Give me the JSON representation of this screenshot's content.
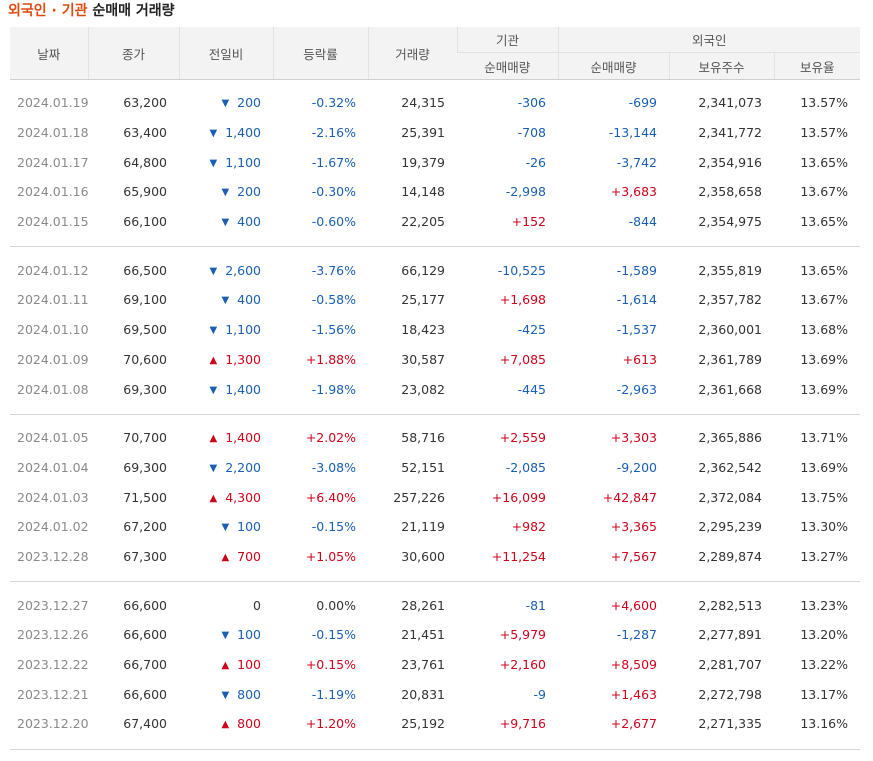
{
  "title": {
    "highlight": "외국인 · 기관",
    "rest": "순매매 거래량"
  },
  "colors": {
    "up": "#d0021b",
    "down": "#1a5fb4",
    "title_accent": "#dd4b11",
    "header_bg": "#f3f3f3"
  },
  "icons": {
    "up": "triangle-up-icon",
    "down": "triangle-down-icon"
  },
  "headers": {
    "date": "날짜",
    "close": "종가",
    "change": "전일비",
    "rate": "등락률",
    "volume": "거래량",
    "institution": "기관",
    "foreign": "외국인",
    "inst_net": "순매매량",
    "foreign_net": "순매매량",
    "holdings": "보유주수",
    "ratio": "보유율"
  },
  "groups": [
    [
      {
        "date": "2024.01.19",
        "close": "63,200",
        "dir": "down",
        "change": "200",
        "rate": "-0.32%",
        "volume": "24,315",
        "inst": "-306",
        "foreign": "-699",
        "holdings": "2,341,073",
        "ratio": "13.57%"
      },
      {
        "date": "2024.01.18",
        "close": "63,400",
        "dir": "down",
        "change": "1,400",
        "rate": "-2.16%",
        "volume": "25,391",
        "inst": "-708",
        "foreign": "-13,144",
        "holdings": "2,341,772",
        "ratio": "13.57%"
      },
      {
        "date": "2024.01.17",
        "close": "64,800",
        "dir": "down",
        "change": "1,100",
        "rate": "-1.67%",
        "volume": "19,379",
        "inst": "-26",
        "foreign": "-3,742",
        "holdings": "2,354,916",
        "ratio": "13.65%"
      },
      {
        "date": "2024.01.16",
        "close": "65,900",
        "dir": "down",
        "change": "200",
        "rate": "-0.30%",
        "volume": "14,148",
        "inst": "-2,998",
        "foreign": "+3,683",
        "holdings": "2,358,658",
        "ratio": "13.67%"
      },
      {
        "date": "2024.01.15",
        "close": "66,100",
        "dir": "down",
        "change": "400",
        "rate": "-0.60%",
        "volume": "22,205",
        "inst": "+152",
        "foreign": "-844",
        "holdings": "2,354,975",
        "ratio": "13.65%"
      }
    ],
    [
      {
        "date": "2024.01.12",
        "close": "66,500",
        "dir": "down",
        "change": "2,600",
        "rate": "-3.76%",
        "volume": "66,129",
        "inst": "-10,525",
        "foreign": "-1,589",
        "holdings": "2,355,819",
        "ratio": "13.65%"
      },
      {
        "date": "2024.01.11",
        "close": "69,100",
        "dir": "down",
        "change": "400",
        "rate": "-0.58%",
        "volume": "25,177",
        "inst": "+1,698",
        "foreign": "-1,614",
        "holdings": "2,357,782",
        "ratio": "13.67%"
      },
      {
        "date": "2024.01.10",
        "close": "69,500",
        "dir": "down",
        "change": "1,100",
        "rate": "-1.56%",
        "volume": "18,423",
        "inst": "-425",
        "foreign": "-1,537",
        "holdings": "2,360,001",
        "ratio": "13.68%"
      },
      {
        "date": "2024.01.09",
        "close": "70,600",
        "dir": "up",
        "change": "1,300",
        "rate": "+1.88%",
        "volume": "30,587",
        "inst": "+7,085",
        "foreign": "+613",
        "holdings": "2,361,789",
        "ratio": "13.69%"
      },
      {
        "date": "2024.01.08",
        "close": "69,300",
        "dir": "down",
        "change": "1,400",
        "rate": "-1.98%",
        "volume": "23,082",
        "inst": "-445",
        "foreign": "-2,963",
        "holdings": "2,361,668",
        "ratio": "13.69%"
      }
    ],
    [
      {
        "date": "2024.01.05",
        "close": "70,700",
        "dir": "up",
        "change": "1,400",
        "rate": "+2.02%",
        "volume": "58,716",
        "inst": "+2,559",
        "foreign": "+3,303",
        "holdings": "2,365,886",
        "ratio": "13.71%"
      },
      {
        "date": "2024.01.04",
        "close": "69,300",
        "dir": "down",
        "change": "2,200",
        "rate": "-3.08%",
        "volume": "52,151",
        "inst": "-2,085",
        "foreign": "-9,200",
        "holdings": "2,362,542",
        "ratio": "13.69%"
      },
      {
        "date": "2024.01.03",
        "close": "71,500",
        "dir": "up",
        "change": "4,300",
        "rate": "+6.40%",
        "volume": "257,226",
        "inst": "+16,099",
        "foreign": "+42,847",
        "holdings": "2,372,084",
        "ratio": "13.75%"
      },
      {
        "date": "2024.01.02",
        "close": "67,200",
        "dir": "down",
        "change": "100",
        "rate": "-0.15%",
        "volume": "21,119",
        "inst": "+982",
        "foreign": "+3,365",
        "holdings": "2,295,239",
        "ratio": "13.30%"
      },
      {
        "date": "2023.12.28",
        "close": "67,300",
        "dir": "up",
        "change": "700",
        "rate": "+1.05%",
        "volume": "30,600",
        "inst": "+11,254",
        "foreign": "+7,567",
        "holdings": "2,289,874",
        "ratio": "13.27%"
      }
    ],
    [
      {
        "date": "2023.12.27",
        "close": "66,600",
        "dir": "flat",
        "change": "0",
        "rate": "0.00%",
        "volume": "28,261",
        "inst": "-81",
        "foreign": "+4,600",
        "holdings": "2,282,513",
        "ratio": "13.23%"
      },
      {
        "date": "2023.12.26",
        "close": "66,600",
        "dir": "down",
        "change": "100",
        "rate": "-0.15%",
        "volume": "21,451",
        "inst": "+5,979",
        "foreign": "-1,287",
        "holdings": "2,277,891",
        "ratio": "13.20%"
      },
      {
        "date": "2023.12.22",
        "close": "66,700",
        "dir": "up",
        "change": "100",
        "rate": "+0.15%",
        "volume": "23,761",
        "inst": "+2,160",
        "foreign": "+8,509",
        "holdings": "2,281,707",
        "ratio": "13.22%"
      },
      {
        "date": "2023.12.21",
        "close": "66,600",
        "dir": "down",
        "change": "800",
        "rate": "-1.19%",
        "volume": "20,831",
        "inst": "-9",
        "foreign": "+1,463",
        "holdings": "2,272,798",
        "ratio": "13.17%"
      },
      {
        "date": "2023.12.20",
        "close": "67,400",
        "dir": "up",
        "change": "800",
        "rate": "+1.20%",
        "volume": "25,192",
        "inst": "+9,716",
        "foreign": "+2,677",
        "holdings": "2,271,335",
        "ratio": "13.16%"
      }
    ]
  ]
}
